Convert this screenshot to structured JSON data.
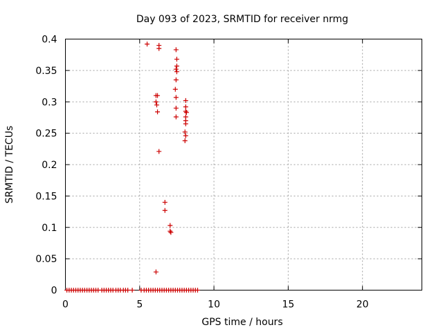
{
  "chart_data": {
    "type": "scatter",
    "title": "Day 093 of 2023, SRMTID for receiver nrmg",
    "xlabel": "GPS time / hours",
    "ylabel": "SRMTID / TECUs",
    "xlim": [
      0,
      24
    ],
    "ylim": [
      0,
      0.4
    ],
    "grid": true,
    "marker": "+",
    "color": "#cc0000",
    "x_ticks": [
      0,
      5,
      10,
      15,
      20
    ],
    "x_tick_labels": [
      "0",
      "5",
      "10",
      "15",
      "20"
    ],
    "y_ticks": [
      0,
      0.05,
      0.1,
      0.15,
      0.2,
      0.25,
      0.3,
      0.35,
      0.4
    ],
    "y_tick_labels": [
      "0",
      "0.05",
      "0.1",
      "0.15",
      "0.2",
      "0.25",
      "0.3",
      "0.35",
      "0.4"
    ],
    "series": [
      {
        "name": "SRMTID",
        "points": [
          [
            0.1,
            0
          ],
          [
            0.25,
            0
          ],
          [
            0.4,
            0
          ],
          [
            0.55,
            0
          ],
          [
            0.7,
            0
          ],
          [
            0.85,
            0
          ],
          [
            1.0,
            0
          ],
          [
            1.15,
            0
          ],
          [
            1.3,
            0
          ],
          [
            1.45,
            0
          ],
          [
            1.6,
            0
          ],
          [
            1.75,
            0
          ],
          [
            1.9,
            0
          ],
          [
            2.05,
            0
          ],
          [
            2.2,
            0
          ],
          [
            2.45,
            0
          ],
          [
            2.6,
            0
          ],
          [
            2.75,
            0
          ],
          [
            2.9,
            0
          ],
          [
            3.05,
            0
          ],
          [
            3.2,
            0
          ],
          [
            3.4,
            0
          ],
          [
            3.55,
            0
          ],
          [
            3.7,
            0
          ],
          [
            3.9,
            0
          ],
          [
            4.05,
            0
          ],
          [
            4.2,
            0
          ],
          [
            4.5,
            0
          ],
          [
            5.1,
            0
          ],
          [
            5.3,
            0
          ],
          [
            5.45,
            0
          ],
          [
            5.6,
            0
          ],
          [
            5.75,
            0
          ],
          [
            5.9,
            0
          ],
          [
            6.05,
            0
          ],
          [
            6.2,
            0
          ],
          [
            6.35,
            0
          ],
          [
            6.5,
            0
          ],
          [
            6.65,
            0
          ],
          [
            6.8,
            0
          ],
          [
            6.95,
            0
          ],
          [
            7.1,
            0
          ],
          [
            7.25,
            0
          ],
          [
            7.4,
            0
          ],
          [
            7.55,
            0
          ],
          [
            7.7,
            0
          ],
          [
            7.85,
            0
          ],
          [
            8.0,
            0
          ],
          [
            8.15,
            0
          ],
          [
            8.3,
            0
          ],
          [
            8.45,
            0
          ],
          [
            8.6,
            0
          ],
          [
            8.75,
            0
          ],
          [
            8.9,
            0
          ],
          [
            5.5,
            0.392
          ],
          [
            6.3,
            0.39
          ],
          [
            6.3,
            0.385
          ],
          [
            7.45,
            0.383
          ],
          [
            7.5,
            0.368
          ],
          [
            7.5,
            0.357
          ],
          [
            7.45,
            0.352
          ],
          [
            7.5,
            0.348
          ],
          [
            7.45,
            0.335
          ],
          [
            7.4,
            0.32
          ],
          [
            7.45,
            0.307
          ],
          [
            6.1,
            0.31
          ],
          [
            6.2,
            0.31
          ],
          [
            6.1,
            0.3
          ],
          [
            6.15,
            0.295
          ],
          [
            6.2,
            0.284
          ],
          [
            7.45,
            0.29
          ],
          [
            7.45,
            0.276
          ],
          [
            8.1,
            0.302
          ],
          [
            8.1,
            0.292
          ],
          [
            8.1,
            0.285
          ],
          [
            8.15,
            0.283
          ],
          [
            8.1,
            0.276
          ],
          [
            8.1,
            0.27
          ],
          [
            8.1,
            0.265
          ],
          [
            8.05,
            0.252
          ],
          [
            8.1,
            0.246
          ],
          [
            8.05,
            0.238
          ],
          [
            6.3,
            0.221
          ],
          [
            6.7,
            0.14
          ],
          [
            6.7,
            0.127
          ],
          [
            7.05,
            0.103
          ],
          [
            7.05,
            0.094
          ],
          [
            7.1,
            0.092
          ],
          [
            6.1,
            0.029
          ]
        ]
      }
    ]
  }
}
